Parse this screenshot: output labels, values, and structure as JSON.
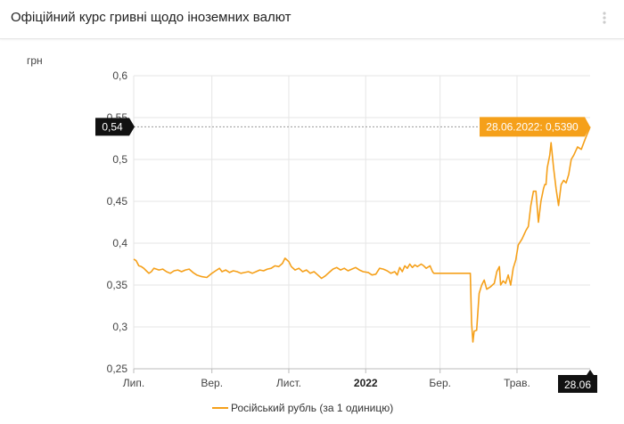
{
  "header": {
    "title": "Офіційний курс гривні щодо іноземних валют"
  },
  "chart_data": {
    "type": "line",
    "ylabel": "грн",
    "ylim": [
      0.25,
      0.6
    ],
    "yticks": [
      0.25,
      0.3,
      0.35,
      0.4,
      0.45,
      0.5,
      0.55,
      0.6
    ],
    "ytick_labels": [
      "0,25",
      "0,3",
      "0,35",
      "0,4",
      "0,45",
      "0,5",
      "0,55",
      "0,6"
    ],
    "xlim": [
      "2021-07-01",
      "2022-06-28"
    ],
    "xticks": [
      {
        "date": "2021-07-01",
        "label": "Лип.",
        "bold": false
      },
      {
        "date": "2021-09-01",
        "label": "Вер.",
        "bold": false
      },
      {
        "date": "2021-11-01",
        "label": "Лист.",
        "bold": false
      },
      {
        "date": "2022-01-01",
        "label": "2022",
        "bold": true
      },
      {
        "date": "2022-03-01",
        "label": "Бер.",
        "bold": false
      },
      {
        "date": "2022-05-01",
        "label": "Трав.",
        "bold": false
      }
    ],
    "x_cursor_label": "28.06",
    "y_cursor_label": "0,54",
    "tooltip": "28.06.2022: 0,5390",
    "grid": true,
    "legend_position": "bottom-center",
    "series": [
      {
        "name": "Російський рубль (за 1 одиницю)",
        "color": "#f5a01a",
        "points": [
          [
            "2021-07-01",
            0.381
          ],
          [
            "2021-07-03",
            0.379
          ],
          [
            "2021-07-05",
            0.373
          ],
          [
            "2021-07-07",
            0.372
          ],
          [
            "2021-07-09",
            0.37
          ],
          [
            "2021-07-11",
            0.367
          ],
          [
            "2021-07-13",
            0.364
          ],
          [
            "2021-07-15",
            0.366
          ],
          [
            "2021-07-17",
            0.37
          ],
          [
            "2021-07-19",
            0.369
          ],
          [
            "2021-07-21",
            0.368
          ],
          [
            "2021-07-24",
            0.369
          ],
          [
            "2021-07-27",
            0.366
          ],
          [
            "2021-07-30",
            0.364
          ],
          [
            "2021-08-02",
            0.367
          ],
          [
            "2021-08-05",
            0.368
          ],
          [
            "2021-08-08",
            0.366
          ],
          [
            "2021-08-11",
            0.368
          ],
          [
            "2021-08-14",
            0.369
          ],
          [
            "2021-08-17",
            0.365
          ],
          [
            "2021-08-20",
            0.362
          ],
          [
            "2021-08-24",
            0.36
          ],
          [
            "2021-08-28",
            0.359
          ],
          [
            "2021-09-01",
            0.364
          ],
          [
            "2021-09-04",
            0.367
          ],
          [
            "2021-09-07",
            0.37
          ],
          [
            "2021-09-09",
            0.366
          ],
          [
            "2021-09-12",
            0.368
          ],
          [
            "2021-09-15",
            0.365
          ],
          [
            "2021-09-18",
            0.367
          ],
          [
            "2021-09-21",
            0.366
          ],
          [
            "2021-09-24",
            0.364
          ],
          [
            "2021-09-27",
            0.365
          ],
          [
            "2021-09-30",
            0.366
          ],
          [
            "2021-10-03",
            0.364
          ],
          [
            "2021-10-06",
            0.366
          ],
          [
            "2021-10-09",
            0.368
          ],
          [
            "2021-10-12",
            0.367
          ],
          [
            "2021-10-15",
            0.369
          ],
          [
            "2021-10-18",
            0.37
          ],
          [
            "2021-10-21",
            0.373
          ],
          [
            "2021-10-24",
            0.372
          ],
          [
            "2021-10-27",
            0.376
          ],
          [
            "2021-10-29",
            0.382
          ],
          [
            "2021-11-01",
            0.378
          ],
          [
            "2021-11-03",
            0.372
          ],
          [
            "2021-11-06",
            0.368
          ],
          [
            "2021-11-09",
            0.37
          ],
          [
            "2021-11-12",
            0.366
          ],
          [
            "2021-11-15",
            0.368
          ],
          [
            "2021-11-18",
            0.364
          ],
          [
            "2021-11-21",
            0.366
          ],
          [
            "2021-11-24",
            0.362
          ],
          [
            "2021-11-27",
            0.358
          ],
          [
            "2021-11-30",
            0.361
          ],
          [
            "2021-12-03",
            0.365
          ],
          [
            "2021-12-06",
            0.369
          ],
          [
            "2021-12-09",
            0.371
          ],
          [
            "2021-12-12",
            0.368
          ],
          [
            "2021-12-15",
            0.37
          ],
          [
            "2021-12-18",
            0.367
          ],
          [
            "2021-12-21",
            0.369
          ],
          [
            "2021-12-24",
            0.371
          ],
          [
            "2021-12-27",
            0.368
          ],
          [
            "2021-12-30",
            0.366
          ],
          [
            "2022-01-03",
            0.365
          ],
          [
            "2022-01-06",
            0.362
          ],
          [
            "2022-01-09",
            0.363
          ],
          [
            "2022-01-12",
            0.37
          ],
          [
            "2022-01-15",
            0.369
          ],
          [
            "2022-01-18",
            0.367
          ],
          [
            "2022-01-21",
            0.364
          ],
          [
            "2022-01-24",
            0.366
          ],
          [
            "2022-01-26",
            0.362
          ],
          [
            "2022-01-28",
            0.371
          ],
          [
            "2022-01-30",
            0.366
          ],
          [
            "2022-02-01",
            0.373
          ],
          [
            "2022-02-03",
            0.37
          ],
          [
            "2022-02-05",
            0.375
          ],
          [
            "2022-02-07",
            0.371
          ],
          [
            "2022-02-09",
            0.374
          ],
          [
            "2022-02-11",
            0.372
          ],
          [
            "2022-02-14",
            0.375
          ],
          [
            "2022-02-16",
            0.373
          ],
          [
            "2022-02-18",
            0.37
          ],
          [
            "2022-02-21",
            0.373
          ],
          [
            "2022-02-23",
            0.366
          ],
          [
            "2022-02-24",
            0.364
          ],
          [
            "2022-03-20",
            0.364
          ],
          [
            "2022-03-25",
            0.364
          ],
          [
            "2022-03-26",
            0.305
          ],
          [
            "2022-03-27",
            0.282
          ],
          [
            "2022-03-28",
            0.295
          ],
          [
            "2022-03-30",
            0.296
          ],
          [
            "2022-04-01",
            0.34
          ],
          [
            "2022-04-03",
            0.35
          ],
          [
            "2022-04-05",
            0.356
          ],
          [
            "2022-04-07",
            0.345
          ],
          [
            "2022-04-10",
            0.348
          ],
          [
            "2022-04-13",
            0.352
          ],
          [
            "2022-04-15",
            0.366
          ],
          [
            "2022-04-17",
            0.372
          ],
          [
            "2022-04-18",
            0.35
          ],
          [
            "2022-04-20",
            0.355
          ],
          [
            "2022-04-22",
            0.352
          ],
          [
            "2022-04-24",
            0.362
          ],
          [
            "2022-04-26",
            0.35
          ],
          [
            "2022-04-28",
            0.37
          ],
          [
            "2022-04-30",
            0.38
          ],
          [
            "2022-05-02",
            0.398
          ],
          [
            "2022-05-05",
            0.405
          ],
          [
            "2022-05-08",
            0.415
          ],
          [
            "2022-05-10",
            0.42
          ],
          [
            "2022-05-12",
            0.445
          ],
          [
            "2022-05-14",
            0.462
          ],
          [
            "2022-05-16",
            0.462
          ],
          [
            "2022-05-18",
            0.425
          ],
          [
            "2022-05-20",
            0.45
          ],
          [
            "2022-05-22",
            0.465
          ],
          [
            "2022-05-23",
            0.47
          ],
          [
            "2022-05-24",
            0.47
          ],
          [
            "2022-05-25",
            0.49
          ],
          [
            "2022-05-27",
            0.505
          ],
          [
            "2022-05-28",
            0.52
          ],
          [
            "2022-05-30",
            0.49
          ],
          [
            "2022-06-01",
            0.465
          ],
          [
            "2022-06-03",
            0.445
          ],
          [
            "2022-06-05",
            0.47
          ],
          [
            "2022-06-07",
            0.475
          ],
          [
            "2022-06-09",
            0.472
          ],
          [
            "2022-06-11",
            0.482
          ],
          [
            "2022-06-13",
            0.5
          ],
          [
            "2022-06-15",
            0.505
          ],
          [
            "2022-06-18",
            0.515
          ],
          [
            "2022-06-21",
            0.512
          ],
          [
            "2022-06-23",
            0.52
          ],
          [
            "2022-06-25",
            0.528
          ],
          [
            "2022-06-27",
            0.535
          ],
          [
            "2022-06-28",
            0.539
          ]
        ]
      }
    ]
  }
}
